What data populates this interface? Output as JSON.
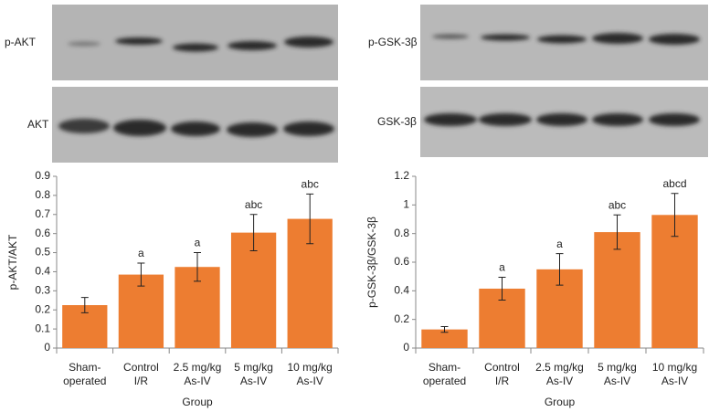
{
  "chart_data": [
    {
      "type": "bar",
      "blot_labels": [
        "p-AKT",
        "AKT"
      ],
      "ylabel": "p-AKT/AKT",
      "xlabel": "Group",
      "categories": [
        "Sham-\noperated",
        "Control\nI/R",
        "2.5 mg/kg\nAs-IV",
        "5 mg/kg\nAs-IV",
        "10 mg/kg\nAs-IV"
      ],
      "values": [
        0.225,
        0.385,
        0.425,
        0.605,
        0.677
      ],
      "errors": [
        0.04,
        0.06,
        0.075,
        0.095,
        0.13
      ],
      "annotations": [
        null,
        "a",
        "a",
        "abc",
        "abc"
      ],
      "color": "#ed7d31",
      "ylim": [
        0,
        0.9
      ],
      "yticks": [
        0,
        0.1,
        0.2,
        0.3,
        0.4,
        0.5,
        0.6,
        0.7,
        0.8,
        0.9
      ]
    },
    {
      "type": "bar",
      "blot_labels": [
        "p-GSK-3β",
        "GSK-3β"
      ],
      "ylabel": "p-GSK-3β/GSK-3β",
      "xlabel": "Group",
      "categories": [
        "Sham-\noperated",
        "Control\nI/R",
        "2.5 mg/kg\nAs-IV",
        "5 mg/kg\nAs-IV",
        "10 mg/kg\nAs-IV"
      ],
      "values": [
        0.13,
        0.415,
        0.55,
        0.81,
        0.93
      ],
      "errors": [
        0.02,
        0.08,
        0.11,
        0.12,
        0.15
      ],
      "annotations": [
        null,
        "a",
        "a",
        "abc",
        "abcd"
      ],
      "color": "#ed7d31",
      "ylim": [
        0,
        1.2
      ],
      "yticks": [
        0,
        0.2,
        0.4,
        0.6,
        0.8,
        1,
        1.2
      ]
    }
  ]
}
